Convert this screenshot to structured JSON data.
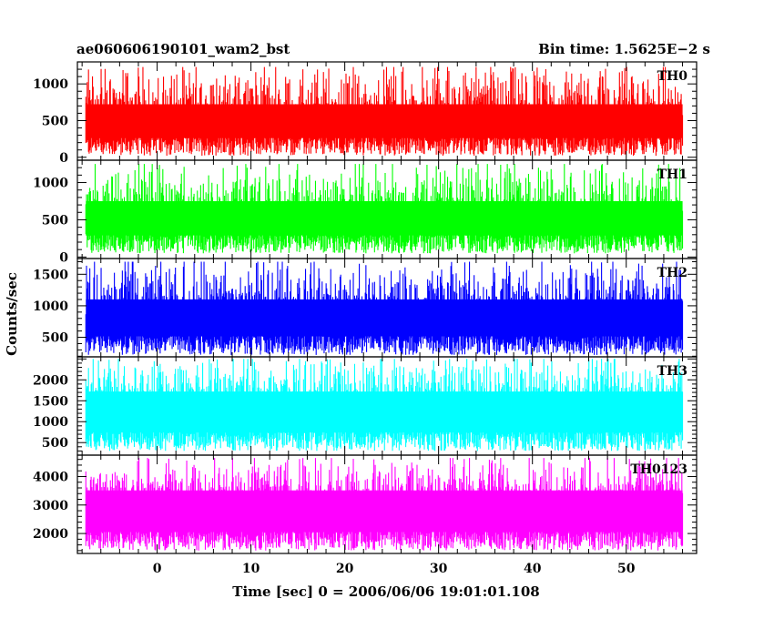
{
  "header": {
    "title": "ae060606190101_wam2_bst",
    "bin_time": "Bin time: 1.5625E−2 s"
  },
  "chart_data": {
    "type": "line",
    "title": "ae060606190101_wam2_bst",
    "subtitle": "Bin time: 1.5625E−2 s",
    "xlabel": "Time [sec] 0 = 2006/06/06 19:01:01.108",
    "ylabel": "Counts/sec",
    "xlim": [
      -8.5,
      57.5
    ],
    "x_data_range": [
      -7.6,
      56.0
    ],
    "bin_time": 0.015625,
    "x_ticks": [
      0,
      10,
      20,
      30,
      40,
      50
    ],
    "x_tick_labels": [
      "0",
      "10",
      "20",
      "30",
      "40",
      "50"
    ],
    "grid": false,
    "legend": "none",
    "panels": [
      {
        "name": "TH0",
        "color": "#ff0000",
        "ylim": [
          -40,
          1300
        ],
        "y_ticks": [
          0,
          500,
          1000
        ],
        "y_tick_labels": [
          "0",
          "500",
          "1000"
        ],
        "mean": 450,
        "min": 20,
        "max": 1230
      },
      {
        "name": "TH1",
        "color": "#00ff00",
        "ylim": [
          -20,
          1300
        ],
        "y_ticks": [
          0,
          500,
          1000
        ],
        "y_tick_labels": [
          "0",
          "500",
          "1000"
        ],
        "mean": 480,
        "min": 50,
        "max": 1250
      },
      {
        "name": "TH2",
        "color": "#0000ff",
        "ylim": [
          190,
          1750
        ],
        "y_ticks": [
          500,
          1000,
          1500
        ],
        "y_tick_labels": [
          "500",
          "1000",
          "1500"
        ],
        "mean": 780,
        "min": 220,
        "max": 1700
      },
      {
        "name": "TH3",
        "color": "#00ffff",
        "ylim": [
          200,
          2550
        ],
        "y_ticks": [
          500,
          1000,
          1500,
          2000
        ],
        "y_tick_labels": [
          "500",
          "1000",
          "1500",
          "2000"
        ],
        "mean": 1300,
        "min": 300,
        "max": 2500
      },
      {
        "name": "TH0123",
        "color": "#ff00ff",
        "ylim": [
          1300,
          4750
        ],
        "y_ticks": [
          2000,
          3000,
          4000
        ],
        "y_tick_labels": [
          "2000",
          "3000",
          "4000"
        ],
        "mean": 2900,
        "min": 1400,
        "max": 4650
      }
    ]
  }
}
